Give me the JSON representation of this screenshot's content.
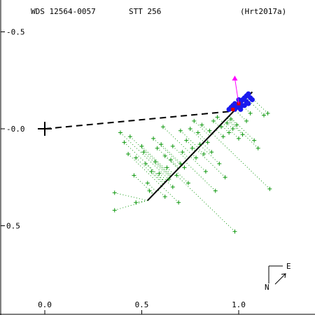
{
  "header": {
    "wds": "WDS 12564-0057",
    "discoverer": "STT 256",
    "reference": "(Hrt2017a)"
  },
  "compass": {
    "east_label": "E",
    "north_label": "N"
  },
  "colors": {
    "axes": "#000000",
    "observations": "#119911",
    "residual_lines": "#119911",
    "speckle_points": "#1a1aee",
    "recent_point": "#ff00ff",
    "predicted_point": "#dd0000",
    "orbit_line": "#000000"
  },
  "chart_data": {
    "type": "scatter",
    "title": "",
    "xlabel": "",
    "ylabel": "",
    "xlim": [
      -0.2,
      1.4
    ],
    "ylim": [
      0.95,
      -0.5
    ],
    "x_ticks": [
      0.0,
      0.5,
      1.0
    ],
    "y_ticks": [
      -0.5,
      0.0,
      0.5
    ],
    "x_tick_labels": [
      "0.0",
      "0.5",
      "1.0"
    ],
    "y_tick_labels": [
      "-0.5",
      "-0.0",
      "0.5"
    ],
    "grid": false,
    "primary_star": [
      0.0,
      0.0
    ],
    "projection_line": {
      "from": [
        0.0,
        0.0
      ],
      "to": [
        0.96,
        -0.09
      ],
      "style": "dashed"
    },
    "motion_line": {
      "from": [
        0.53,
        0.37
      ],
      "to": [
        1.07,
        -0.19
      ],
      "style": "solid"
    },
    "recent_measure": [
      0.98,
      -0.26
    ],
    "predicted_points": [
      [
        0.97,
        -0.1
      ],
      [
        1.0,
        -0.13
      ]
    ],
    "speckle_measures": [
      [
        0.95,
        -0.1
      ],
      [
        0.97,
        -0.12
      ],
      [
        0.98,
        -0.13
      ],
      [
        0.99,
        -0.12
      ],
      [
        1.0,
        -0.11
      ],
      [
        1.01,
        -0.14
      ],
      [
        1.02,
        -0.15
      ],
      [
        1.03,
        -0.16
      ],
      [
        1.04,
        -0.17
      ],
      [
        1.05,
        -0.18
      ],
      [
        1.06,
        -0.16
      ],
      [
        1.07,
        -0.15
      ],
      [
        1.03,
        -0.12
      ],
      [
        0.96,
        -0.11
      ],
      [
        0.98,
        -0.1
      ],
      [
        1.0,
        -0.15
      ],
      [
        1.02,
        -0.12
      ],
      [
        1.04,
        -0.14
      ],
      [
        1.05,
        -0.13
      ],
      [
        1.01,
        -0.1
      ]
    ],
    "observations": [
      [
        0.39,
        0.02
      ],
      [
        0.41,
        0.07
      ],
      [
        0.43,
        0.13
      ],
      [
        0.47,
        0.15
      ],
      [
        0.51,
        0.12
      ],
      [
        0.36,
        0.33
      ],
      [
        0.36,
        0.42
      ],
      [
        0.47,
        0.38
      ],
      [
        0.53,
        0.28
      ],
      [
        0.55,
        0.22
      ],
      [
        0.57,
        0.17
      ],
      [
        0.58,
        0.1
      ],
      [
        0.6,
        0.08
      ],
      [
        0.62,
        0.14
      ],
      [
        0.63,
        0.2
      ],
      [
        0.64,
        0.26
      ],
      [
        0.66,
        0.3
      ],
      [
        0.68,
        0.24
      ],
      [
        0.7,
        0.18
      ],
      [
        0.71,
        0.12
      ],
      [
        0.73,
        0.06
      ],
      [
        0.75,
        0.0
      ],
      [
        0.77,
        -0.04
      ],
      [
        0.79,
        0.02
      ],
      [
        0.8,
        0.08
      ],
      [
        0.82,
        0.13
      ],
      [
        0.84,
        0.07
      ],
      [
        0.85,
        0.01
      ],
      [
        0.87,
        -0.04
      ],
      [
        0.89,
        -0.06
      ],
      [
        0.91,
        -0.01
      ],
      [
        0.92,
        0.04
      ],
      [
        0.94,
        -0.03
      ],
      [
        0.95,
        0.02
      ],
      [
        0.96,
        -0.05
      ],
      [
        0.97,
        0.0
      ],
      [
        0.99,
        -0.02
      ],
      [
        1.0,
        0.05
      ],
      [
        1.02,
        0.03
      ],
      [
        1.04,
        -0.04
      ],
      [
        1.06,
        -0.08
      ],
      [
        1.08,
        0.06
      ],
      [
        1.1,
        0.1
      ],
      [
        1.13,
        -0.07
      ],
      [
        1.15,
        -0.08
      ],
      [
        1.16,
        0.31
      ],
      [
        0.98,
        0.53
      ],
      [
        0.88,
        0.32
      ],
      [
        0.74,
        0.28
      ],
      [
        0.69,
        0.38
      ],
      [
        0.56,
        0.05
      ],
      [
        0.52,
        0.18
      ],
      [
        0.61,
        -0.01
      ],
      [
        0.66,
        0.09
      ],
      [
        0.72,
        0.2
      ],
      [
        0.78,
        0.15
      ],
      [
        0.83,
        0.22
      ],
      [
        0.86,
        0.12
      ],
      [
        0.9,
        0.18
      ],
      [
        0.93,
        0.25
      ],
      [
        0.81,
        -0.02
      ],
      [
        0.76,
        0.1
      ],
      [
        0.7,
        0.01
      ],
      [
        0.65,
        0.16
      ],
      [
        0.59,
        0.23
      ],
      [
        0.54,
        0.32
      ],
      [
        0.5,
        0.09
      ],
      [
        0.46,
        0.24
      ],
      [
        0.44,
        0.04
      ],
      [
        0.62,
        0.35
      ]
    ]
  }
}
